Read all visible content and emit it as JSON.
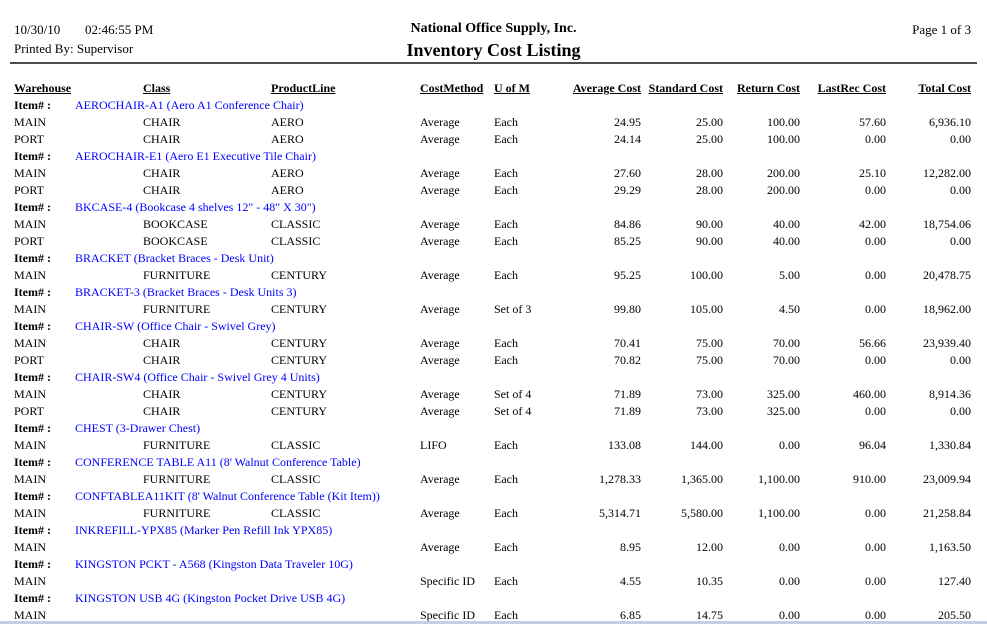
{
  "header": {
    "date": "10/30/10",
    "time": "02:46:55 PM",
    "printed_by": "Printed By: Supervisor",
    "company": "National Office Supply, Inc.",
    "report_title": "Inventory Cost Listing",
    "page_info": "Page 1 of 3"
  },
  "colors": {
    "item_link_blue": "#0000ff",
    "header_rule": "#4d4d4d",
    "bottom_bar": "#c3d0e2"
  },
  "table": {
    "item_label": "Item# :",
    "columns": [
      "Warehouse",
      "Class",
      "ProductLine",
      "CostMethod",
      "U of M",
      "Average Cost",
      "Standard Cost",
      "Return Cost",
      "LastRec Cost",
      "Total Cost"
    ],
    "items": [
      {
        "item": "AEROCHAIR-A1 (Aero A1 Conference Chair)",
        "rows": [
          [
            "MAIN",
            "CHAIR",
            "AERO",
            "Average",
            "Each",
            "24.95",
            "25.00",
            "100.00",
            "57.60",
            "6,936.10"
          ],
          [
            "PORT",
            "CHAIR",
            "AERO",
            "Average",
            "Each",
            "24.14",
            "25.00",
            "100.00",
            "0.00",
            "0.00"
          ]
        ]
      },
      {
        "item": "AEROCHAIR-E1 (Aero E1 Executive Tile Chair)",
        "rows": [
          [
            "MAIN",
            "CHAIR",
            "AERO",
            "Average",
            "Each",
            "27.60",
            "28.00",
            "200.00",
            "25.10",
            "12,282.00"
          ],
          [
            "PORT",
            "CHAIR",
            "AERO",
            "Average",
            "Each",
            "29.29",
            "28.00",
            "200.00",
            "0.00",
            "0.00"
          ]
        ]
      },
      {
        "item": "BKCASE-4 (Bookcase 4 shelves 12\" - 48\" X 30\")",
        "rows": [
          [
            "MAIN",
            "BOOKCASE",
            "CLASSIC",
            "Average",
            "Each",
            "84.86",
            "90.00",
            "40.00",
            "42.00",
            "18,754.06"
          ],
          [
            "PORT",
            "BOOKCASE",
            "CLASSIC",
            "Average",
            "Each",
            "85.25",
            "90.00",
            "40.00",
            "0.00",
            "0.00"
          ]
        ]
      },
      {
        "item": "BRACKET (Bracket Braces - Desk Unit)",
        "rows": [
          [
            "MAIN",
            "FURNITURE",
            "CENTURY",
            "Average",
            "Each",
            "95.25",
            "100.00",
            "5.00",
            "0.00",
            "20,478.75"
          ]
        ]
      },
      {
        "item": "BRACKET-3 (Bracket Braces - Desk Units 3)",
        "rows": [
          [
            "MAIN",
            "FURNITURE",
            "CENTURY",
            "Average",
            "Set of 3",
            "99.80",
            "105.00",
            "4.50",
            "0.00",
            "18,962.00"
          ]
        ]
      },
      {
        "item": "CHAIR-SW (Office Chair - Swivel Grey)",
        "rows": [
          [
            "MAIN",
            "CHAIR",
            "CENTURY",
            "Average",
            "Each",
            "70.41",
            "75.00",
            "70.00",
            "56.66",
            "23,939.40"
          ],
          [
            "PORT",
            "CHAIR",
            "CENTURY",
            "Average",
            "Each",
            "70.82",
            "75.00",
            "70.00",
            "0.00",
            "0.00"
          ]
        ]
      },
      {
        "item": "CHAIR-SW4 (Office Chair - Swivel Grey 4 Units)",
        "rows": [
          [
            "MAIN",
            "CHAIR",
            "CENTURY",
            "Average",
            "Set of 4",
            "71.89",
            "73.00",
            "325.00",
            "460.00",
            "8,914.36"
          ],
          [
            "PORT",
            "CHAIR",
            "CENTURY",
            "Average",
            "Set of 4",
            "71.89",
            "73.00",
            "325.00",
            "0.00",
            "0.00"
          ]
        ]
      },
      {
        "item": "CHEST (3-Drawer Chest)",
        "rows": [
          [
            "MAIN",
            "FURNITURE",
            "CLASSIC",
            "LIFO",
            "Each",
            "133.08",
            "144.00",
            "0.00",
            "96.04",
            "1,330.84"
          ]
        ]
      },
      {
        "item": "CONFERENCE TABLE A11 (8' Walnut Conference Table)",
        "rows": [
          [
            "MAIN",
            "FURNITURE",
            "CLASSIC",
            "Average",
            "Each",
            "1,278.33",
            "1,365.00",
            "1,100.00",
            "910.00",
            "23,009.94"
          ]
        ]
      },
      {
        "item": "CONFTABLEA11KIT (8' Walnut Conference Table (Kit Item))",
        "rows": [
          [
            "MAIN",
            "FURNITURE",
            "CLASSIC",
            "Average",
            "Each",
            "5,314.71",
            "5,580.00",
            "1,100.00",
            "0.00",
            "21,258.84"
          ]
        ]
      },
      {
        "item": "INKREFILL-YPX85 (Marker Pen Refill Ink YPX85)",
        "rows": [
          [
            "MAIN",
            "",
            "",
            "Average",
            "Each",
            "8.95",
            "12.00",
            "0.00",
            "0.00",
            "1,163.50"
          ]
        ]
      },
      {
        "item": "KINGSTON PCKT - A568 (Kingston Data Traveler 10G)",
        "rows": [
          [
            "MAIN",
            "",
            "",
            "Specific ID",
            "Each",
            "4.55",
            "10.35",
            "0.00",
            "0.00",
            "127.40"
          ]
        ]
      },
      {
        "item": "KINGSTON USB 4G (Kingston Pocket Drive USB 4G)",
        "rows": [
          [
            "MAIN",
            "",
            "",
            "Specific ID",
            "Each",
            "6.85",
            "14.75",
            "0.00",
            "0.00",
            "205.50"
          ]
        ]
      }
    ]
  }
}
